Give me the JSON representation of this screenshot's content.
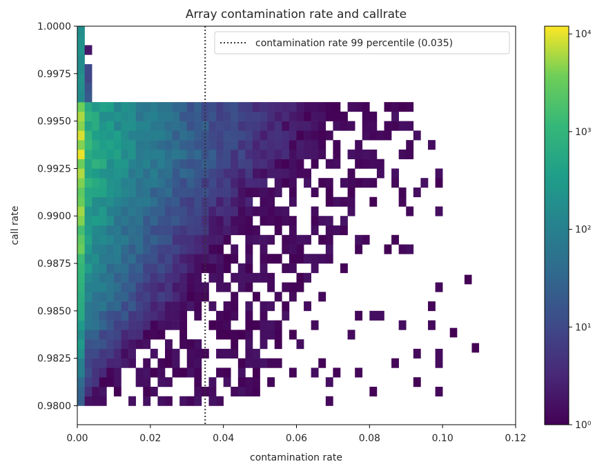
{
  "chart_data": {
    "type": "heatmap",
    "title": "Array contamination rate and callrate",
    "xlabel": "contamination rate",
    "ylabel": "call rate",
    "xlim": [
      0.0,
      0.12
    ],
    "ylim": [
      0.979,
      1.0
    ],
    "xticks": [
      "0.00",
      "0.02",
      "0.04",
      "0.06",
      "0.08",
      "0.10",
      "0.12"
    ],
    "yticks": [
      "0.9800",
      "0.9825",
      "0.9850",
      "0.9875",
      "0.9900",
      "0.9925",
      "0.9950",
      "0.9975",
      "1.0000"
    ],
    "legend": {
      "label": "contamination rate 99 percentile (0.035)",
      "position": "top-right",
      "style": "dotted",
      "color": "#333333"
    },
    "threshold_line": {
      "x": 0.035
    },
    "colorbar": {
      "scale": "log",
      "ticks": [
        "10⁰",
        "10¹",
        "10²",
        "10³",
        "10⁴"
      ],
      "colormap": "viridis",
      "range": [
        1,
        12000
      ]
    },
    "bins": {
      "x_start": 0.0,
      "x_step": 0.002,
      "nx": 50,
      "y_start": 0.98,
      "y_step": 0.0005,
      "ny": 40
    },
    "grid": false
  }
}
